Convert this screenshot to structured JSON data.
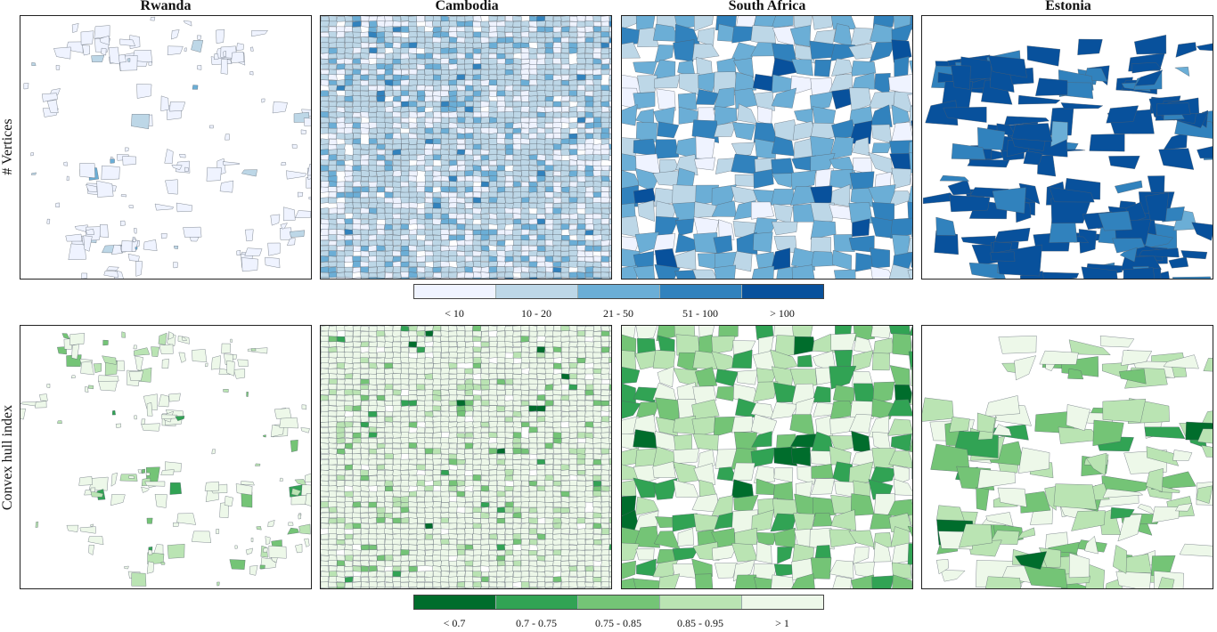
{
  "columns": [
    "Rwanda",
    "Cambodia",
    "South Africa",
    "Estonia"
  ],
  "rows": [
    {
      "label": "# Vertices",
      "legend": {
        "labels": [
          "< 10",
          "10 - 20",
          "21 - 50",
          "51 - 100",
          "> 100"
        ],
        "colors": [
          "#eff3ff",
          "#bdd7e7",
          "#6baed6",
          "#3182bd",
          "#08519c"
        ]
      }
    },
    {
      "label": "Convex hull index",
      "legend": {
        "labels": [
          "< 0.7",
          "0.7 - 0.75",
          "0.75 - 0.85",
          "0.85 - 0.95",
          "> 1"
        ],
        "colors": [
          "#006d2c",
          "#31a354",
          "#74c476",
          "#bae4b3",
          "#edf8e9"
        ]
      }
    }
  ],
  "panel_styles": {
    "Rwanda": {
      "pattern": "scattered",
      "vertices_mix": [
        0.85,
        0.12,
        0.03,
        0,
        0
      ],
      "hull_mix": [
        0,
        0.02,
        0.1,
        0.2,
        0.68
      ]
    },
    "Cambodia": {
      "pattern": "dense-grid",
      "vertices_mix": [
        0.25,
        0.58,
        0.15,
        0.02,
        0
      ],
      "hull_mix": [
        0.005,
        0.01,
        0.05,
        0.1,
        0.835
      ]
    },
    "South Africa": {
      "pattern": "large-dense",
      "vertices_mix": [
        0.1,
        0.25,
        0.4,
        0.2,
        0.05
      ],
      "hull_mix": [
        0.06,
        0.12,
        0.22,
        0.3,
        0.3
      ]
    },
    "Estonia": {
      "pattern": "bands",
      "vertices_mix": [
        0,
        0,
        0.05,
        0.2,
        0.75
      ],
      "hull_mix": [
        0.03,
        0.06,
        0.25,
        0.36,
        0.3
      ]
    }
  }
}
